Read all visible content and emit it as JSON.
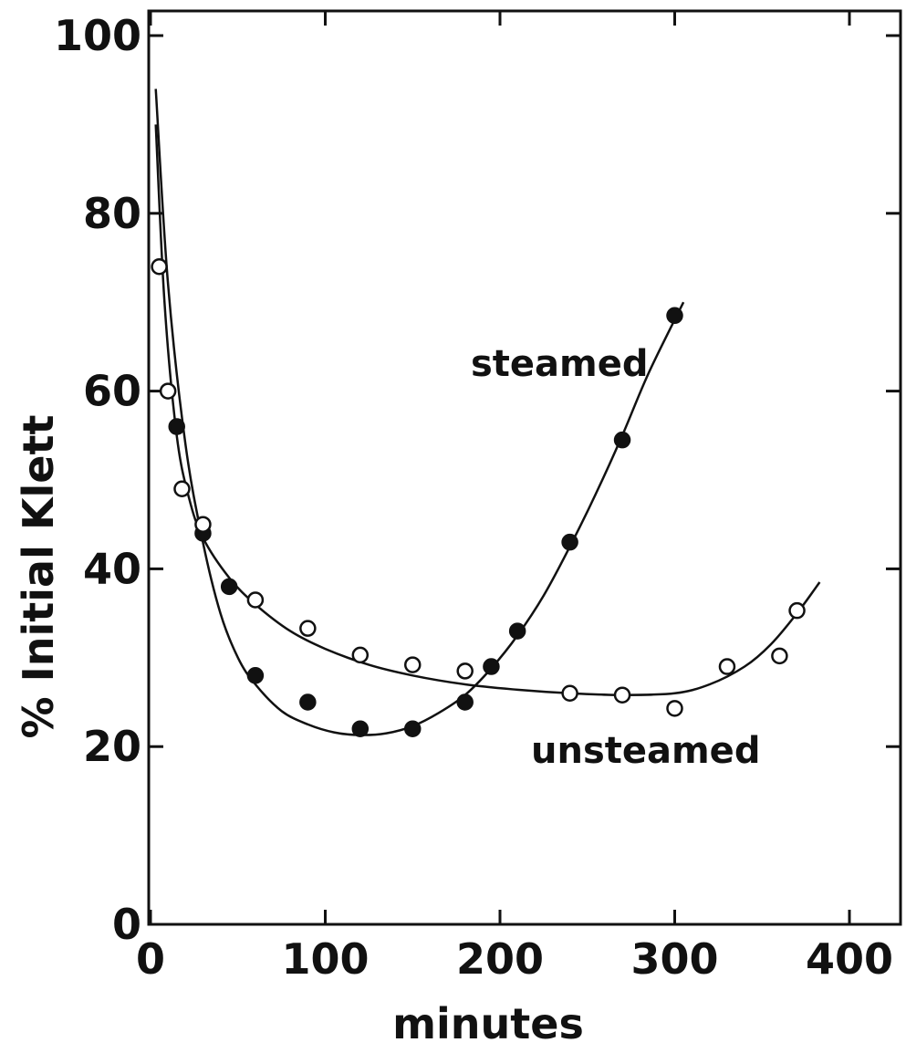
{
  "chart_data": {
    "type": "scatter",
    "xlabel": "minutes",
    "ylabel": "% Initial Klett",
    "xlim": [
      0,
      430
    ],
    "ylim": [
      0,
      100
    ],
    "x_ticks": [
      0,
      100,
      200,
      300,
      400
    ],
    "y_ticks": [
      0,
      20,
      40,
      60,
      80,
      100
    ],
    "grid": false,
    "colors": {
      "ink": "#111111",
      "background": "#ffffff"
    },
    "series": [
      {
        "name": "steamed",
        "marker": "filled-circle",
        "points": [
          [
            15,
            56
          ],
          [
            30,
            44
          ],
          [
            45,
            38
          ],
          [
            60,
            28
          ],
          [
            90,
            25
          ],
          [
            120,
            22
          ],
          [
            150,
            22
          ],
          [
            180,
            25
          ],
          [
            195,
            29
          ],
          [
            210,
            33
          ],
          [
            240,
            43
          ],
          [
            270,
            54.5
          ],
          [
            300,
            68.5
          ]
        ],
        "curve": [
          [
            3,
            94
          ],
          [
            10,
            72
          ],
          [
            20,
            54
          ],
          [
            30,
            43
          ],
          [
            40,
            35
          ],
          [
            50,
            30
          ],
          [
            60,
            27
          ],
          [
            75,
            24
          ],
          [
            90,
            22.5
          ],
          [
            105,
            21.6
          ],
          [
            120,
            21.3
          ],
          [
            135,
            21.5
          ],
          [
            150,
            22.3
          ],
          [
            165,
            23.8
          ],
          [
            180,
            25.8
          ],
          [
            195,
            28.8
          ],
          [
            210,
            32.5
          ],
          [
            225,
            37
          ],
          [
            240,
            42.5
          ],
          [
            255,
            48.5
          ],
          [
            270,
            55
          ],
          [
            285,
            62
          ],
          [
            305,
            70
          ]
        ]
      },
      {
        "name": "unsteamed",
        "marker": "open-circle",
        "points": [
          [
            5,
            74
          ],
          [
            10,
            60
          ],
          [
            18,
            49
          ],
          [
            30,
            45
          ],
          [
            60,
            36.5
          ],
          [
            90,
            33.3
          ],
          [
            120,
            30.3
          ],
          [
            150,
            29.2
          ],
          [
            180,
            28.5
          ],
          [
            240,
            26
          ],
          [
            270,
            25.8
          ],
          [
            300,
            24.3
          ],
          [
            330,
            29
          ],
          [
            360,
            30.2
          ],
          [
            370,
            35.3
          ]
        ],
        "curve": [
          [
            3,
            90
          ],
          [
            8,
            70
          ],
          [
            15,
            55
          ],
          [
            22,
            48
          ],
          [
            30,
            43.5
          ],
          [
            45,
            39
          ],
          [
            60,
            36
          ],
          [
            80,
            33
          ],
          [
            100,
            31
          ],
          [
            125,
            29.2
          ],
          [
            150,
            28
          ],
          [
            180,
            27
          ],
          [
            210,
            26.4
          ],
          [
            240,
            26
          ],
          [
            270,
            25.8
          ],
          [
            300,
            26
          ],
          [
            320,
            27
          ],
          [
            340,
            29
          ],
          [
            355,
            31.5
          ],
          [
            370,
            35
          ],
          [
            383,
            38.5
          ]
        ]
      }
    ]
  }
}
